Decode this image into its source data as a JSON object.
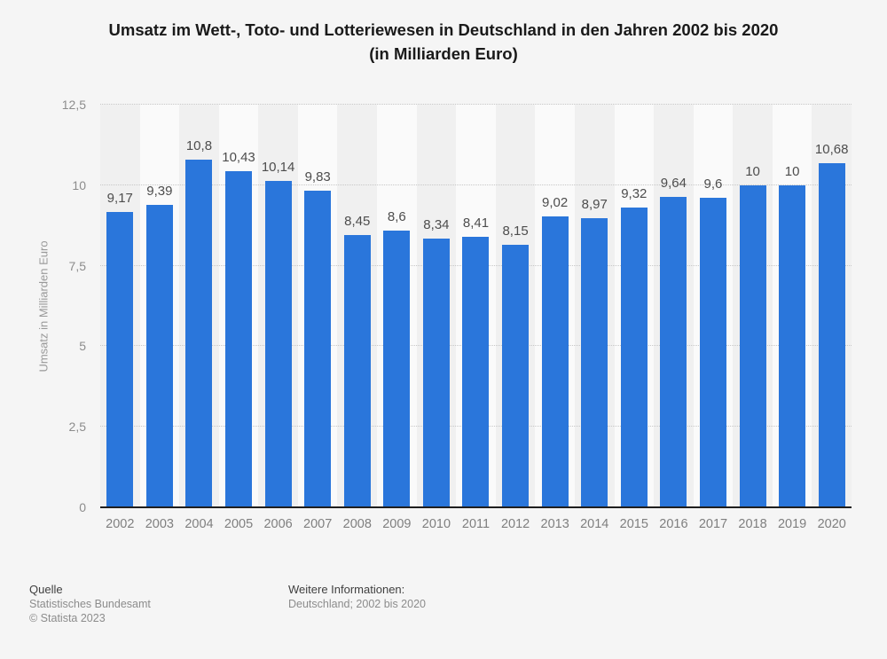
{
  "title": {
    "line1": "Umsatz im Wett-, Toto- und Lotteriewesen in Deutschland in den Jahren 2002 bis 2020",
    "line2": "(in Milliarden Euro)"
  },
  "chart_data": {
    "type": "bar",
    "title": "Umsatz im Wett-, Toto- und Lotteriewesen in Deutschland in den Jahren 2002 bis 2020 (in Milliarden Euro)",
    "categories": [
      "2002",
      "2003",
      "2004",
      "2005",
      "2006",
      "2007",
      "2008",
      "2009",
      "2010",
      "2011",
      "2012",
      "2013",
      "2014",
      "2015",
      "2016",
      "2017",
      "2018",
      "2019",
      "2020"
    ],
    "values": [
      9.17,
      9.39,
      10.8,
      10.43,
      10.14,
      9.83,
      8.45,
      8.6,
      8.34,
      8.41,
      8.15,
      9.02,
      8.97,
      9.32,
      9.64,
      9.6,
      10,
      10,
      10.68
    ],
    "value_labels": [
      "9,17",
      "9,39",
      "10,8",
      "10,43",
      "10,14",
      "9,83",
      "8,45",
      "8,6",
      "8,34",
      "8,41",
      "8,15",
      "9,02",
      "8,97",
      "9,32",
      "9,64",
      "9,6",
      "10",
      "10",
      "10,68"
    ],
    "xlabel": "",
    "ylabel": "Umsatz in Milliarden Euro",
    "ylim": [
      0,
      12.5
    ],
    "yticks": [
      {
        "value": 0,
        "label": "0"
      },
      {
        "value": 2.5,
        "label": "2,5"
      },
      {
        "value": 5,
        "label": "5"
      },
      {
        "value": 7.5,
        "label": "7,5"
      },
      {
        "value": 10,
        "label": "10"
      },
      {
        "value": 12.5,
        "label": "12,5"
      }
    ],
    "grid": "horizontal-dotted",
    "legend": "none",
    "bar_color": "#2a76db"
  },
  "colors": {
    "page_background": "#f5f5f5",
    "band_dark": "#f0f0f0",
    "band_light": "#fafafa",
    "bar": "#2a76db",
    "gridline": "#c7c7c7",
    "axis_line": "#1f1f1f",
    "title_text": "#1a1a1a",
    "value_label_text": "#4d4d4d",
    "x_label_text": "#7f7f7f",
    "y_label_text": "#8c8c8c"
  },
  "footer": {
    "source_label": "Quelle",
    "source": "Statistisches Bundesamt",
    "copyright": "© Statista 2023",
    "info_label": "Weitere Informationen:",
    "info": "Deutschland; 2002 bis 2020"
  }
}
